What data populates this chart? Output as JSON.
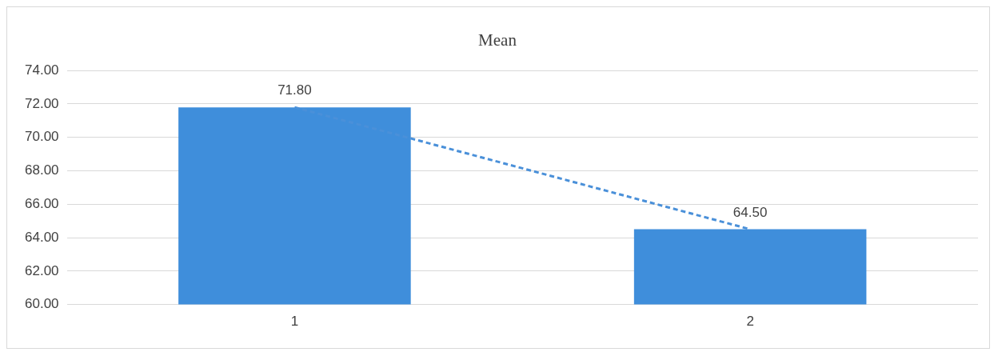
{
  "chart_data": {
    "type": "bar",
    "title": "Mean",
    "categories": [
      "1",
      "2"
    ],
    "series": [
      {
        "color": "#3f8edb",
        "values": [
          71.8,
          64.5
        ],
        "value_labels": [
          "71.80",
          "64.50"
        ]
      },
      {
        "type": "line",
        "x": [
          "1",
          "2"
        ],
        "color": "#4a90d9",
        "values": [
          71.8,
          64.5
        ],
        "line_style": "dashed",
        "marker": "none"
      }
    ],
    "ylim": [
      60,
      74
    ],
    "yticks": [
      {
        "value": 60,
        "label": "60.00"
      },
      {
        "value": 62,
        "label": "62.00"
      },
      {
        "value": 64,
        "label": "64.00"
      },
      {
        "value": 66,
        "label": "66.00"
      },
      {
        "value": 68,
        "label": "68.00"
      },
      {
        "value": 70,
        "label": "70.00"
      },
      {
        "value": 72,
        "label": "72.00"
      },
      {
        "value": 74,
        "label": "74.00"
      }
    ],
    "grid": "y",
    "legend": false
  }
}
